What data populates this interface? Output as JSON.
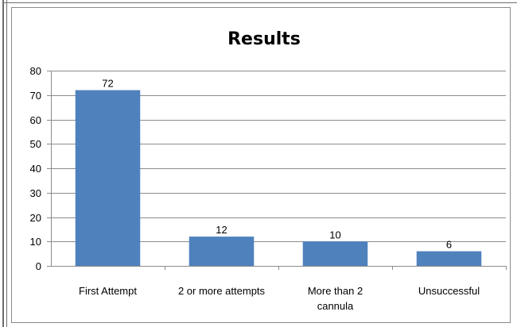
{
  "chart_data": {
    "type": "bar",
    "title": "Results",
    "categories": [
      [
        "First Attempt"
      ],
      [
        "2 or more attempts"
      ],
      [
        "More than 2",
        "cannula"
      ],
      [
        "Unsuccessful"
      ]
    ],
    "values": [
      72,
      12,
      10,
      6
    ],
    "data_labels": [
      "72",
      "12",
      "10",
      "6"
    ],
    "yticks": [
      "0",
      "10",
      "20",
      "30",
      "40",
      "50",
      "60",
      "70",
      "80"
    ],
    "ylim": [
      0,
      80
    ],
    "ytick_step": 10,
    "grid": true,
    "legend": "none",
    "bar_color": "#4f81bd",
    "grid_color": "#8c8c8c"
  }
}
